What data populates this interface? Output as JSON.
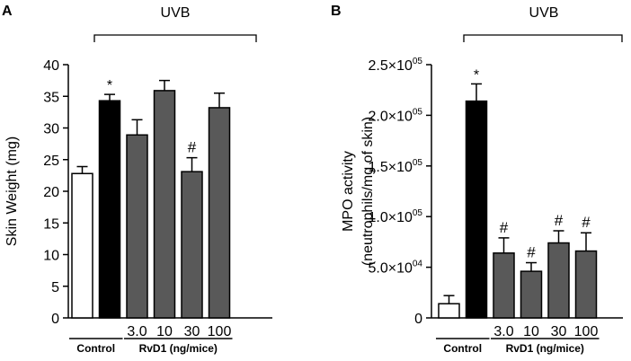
{
  "panels": [
    {
      "letter": "A",
      "bracket_label": "UVB",
      "chart_data": {
        "type": "bar",
        "title": "",
        "xlabel": "",
        "ylabel": "Skin Weight (mg)",
        "ylim": [
          0,
          40
        ],
        "yticks": [
          0,
          5,
          10,
          15,
          20,
          25,
          30,
          35,
          40
        ],
        "ytick_labels": [
          "0",
          "5",
          "10",
          "15",
          "20",
          "25",
          "30",
          "35",
          "40"
        ],
        "categories": [
          "",
          "",
          "3.0",
          "10",
          "30",
          "100"
        ],
        "values": [
          22.8,
          34.3,
          28.9,
          35.9,
          23.1,
          33.2
        ],
        "errors": [
          1.1,
          1.0,
          2.4,
          1.6,
          2.2,
          2.3
        ],
        "colors": [
          "#ffffff",
          "#000000",
          "#595959",
          "#595959",
          "#595959",
          "#595959"
        ],
        "annotations": [
          "",
          "*",
          "",
          "",
          "#",
          ""
        ],
        "groups": [
          {
            "label": "Control",
            "from": 0,
            "to": 1
          },
          {
            "label": "RvD1 (ng/mice)",
            "from": 2,
            "to": 5
          }
        ],
        "uvb_from": 1,
        "uvb_to": 5
      }
    },
    {
      "letter": "B",
      "bracket_label": "UVB",
      "chart_data": {
        "type": "bar",
        "title": "",
        "xlabel": "",
        "ylabel": "MPO activity",
        "ylabel2": "(neutrophils/mg of skin)",
        "ylim": [
          0,
          250000
        ],
        "yticks": [
          0,
          50000,
          100000,
          150000,
          200000,
          250000
        ],
        "ytick_labels": [
          {
            "mant": "0",
            "exp": ""
          },
          {
            "mant": "5.0×10",
            "exp": "04"
          },
          {
            "mant": "1.0×10",
            "exp": "05"
          },
          {
            "mant": "1.5×10",
            "exp": "05"
          },
          {
            "mant": "2.0×10",
            "exp": "05"
          },
          {
            "mant": "2.5×10",
            "exp": "05"
          }
        ],
        "categories": [
          "",
          "",
          "3.0",
          "10",
          "30",
          "100"
        ],
        "values": [
          14000,
          214000,
          64000,
          46000,
          74000,
          66000
        ],
        "errors": [
          8000,
          17000,
          15000,
          8500,
          12000,
          18000
        ],
        "colors": [
          "#ffffff",
          "#000000",
          "#595959",
          "#595959",
          "#595959",
          "#595959"
        ],
        "annotations": [
          "",
          "*",
          "#",
          "#",
          "#",
          "#"
        ],
        "groups": [
          {
            "label": "Control",
            "from": 0,
            "to": 1
          },
          {
            "label": "RvD1 (ng/mice)",
            "from": 2,
            "to": 5
          }
        ],
        "uvb_from": 1,
        "uvb_to": 5
      }
    }
  ]
}
